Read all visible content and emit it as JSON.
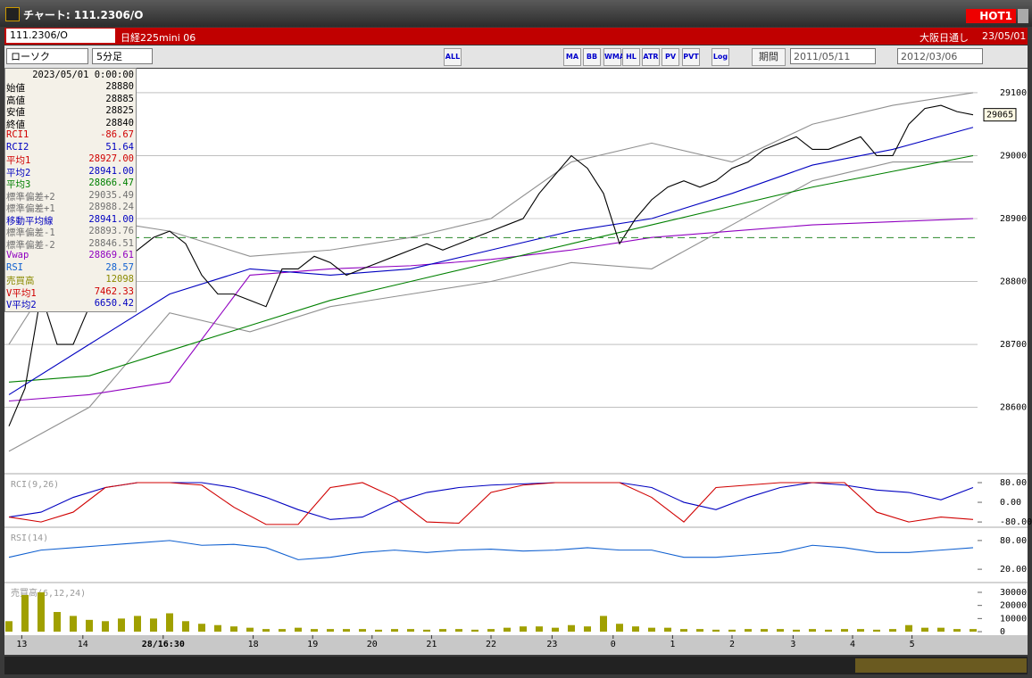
{
  "window": {
    "title": "チャート: 111.2306/O",
    "badge": "HOT1"
  },
  "symbol_bar": {
    "code": "111.2306/O",
    "name": "日経225mini 06",
    "session": "大阪日通し",
    "date": "23/05/01"
  },
  "toolbar": {
    "chart_kind": "ローソク",
    "interval": "5分足",
    "buttons": [
      "ALL",
      "MA",
      "BB",
      "WMA",
      "HL",
      "ATR",
      "PV",
      "PVT",
      "Log"
    ],
    "period_button": "期間",
    "from": "2011/05/11",
    "to": "2012/03/06"
  },
  "info": {
    "datetime": "2023/05/01 0:00:00",
    "rows": [
      {
        "label": "始値",
        "value": "28880",
        "color": "#000000"
      },
      {
        "label": "高値",
        "value": "28885",
        "color": "#000000"
      },
      {
        "label": "安値",
        "value": "28825",
        "color": "#000000"
      },
      {
        "label": "終値",
        "value": "28840",
        "color": "#000000"
      },
      {
        "label": "RCI1",
        "value": "-86.67",
        "color": "#d00000"
      },
      {
        "label": "RCI2",
        "value": "51.64",
        "color": "#0000c0"
      },
      {
        "label": "平均1",
        "value": "28927.00",
        "color": "#d00000"
      },
      {
        "label": "平均2",
        "value": "28941.00",
        "color": "#0000c0"
      },
      {
        "label": "平均3",
        "value": "28866.47",
        "color": "#008000"
      },
      {
        "label": "標準偏差+2",
        "value": "29035.49",
        "color": "#707070"
      },
      {
        "label": "標準偏差+1",
        "value": "28988.24",
        "color": "#707070"
      },
      {
        "label": "移動平均線",
        "value": "28941.00",
        "color": "#0000c0"
      },
      {
        "label": "標準偏差-1",
        "value": "28893.76",
        "color": "#707070"
      },
      {
        "label": "標準偏差-2",
        "value": "28846.51",
        "color": "#707070"
      },
      {
        "label": "Vwap",
        "value": "28869.61",
        "color": "#9000c0"
      },
      {
        "label": "RSI",
        "value": "28.57",
        "color": "#1060d0"
      },
      {
        "label": "売買高",
        "value": "12098",
        "color": "#8a8a00"
      },
      {
        "label": "V平均1",
        "value": "7462.33",
        "color": "#d00000"
      },
      {
        "label": "V平均2",
        "value": "6650.42",
        "color": "#0000c0"
      }
    ]
  },
  "chart_data": [
    {
      "type": "line",
      "last_price": 29065,
      "xlim": [
        0,
        60
      ],
      "ylim": [
        28510,
        29134
      ],
      "yticks": [
        28600,
        28700,
        28800,
        28900,
        29000,
        29100
      ],
      "grid": true,
      "xticks": [
        {
          "value": 0.8,
          "label": "13"
        },
        {
          "value": 4.6,
          "label": "14"
        },
        {
          "value": 9.6,
          "label": "28/16:30"
        },
        {
          "value": 15.2,
          "label": "18"
        },
        {
          "value": 18.9,
          "label": "19"
        },
        {
          "value": 22.6,
          "label": "20"
        },
        {
          "value": 26.3,
          "label": "21"
        },
        {
          "value": 30,
          "label": "22"
        },
        {
          "value": 33.8,
          "label": "23"
        },
        {
          "value": 37.6,
          "label": "0"
        },
        {
          "value": 41.3,
          "label": "1"
        },
        {
          "value": 45,
          "label": "2"
        },
        {
          "value": 48.8,
          "label": "3"
        },
        {
          "value": 52.5,
          "label": "4"
        },
        {
          "value": 56.2,
          "label": "5"
        }
      ],
      "x": [
        0,
        1,
        2,
        3,
        4,
        5,
        6,
        7,
        8,
        9,
        10,
        11,
        12,
        13,
        14,
        15,
        16,
        17,
        18,
        19,
        20,
        21,
        22,
        23,
        24,
        25,
        26,
        27,
        28,
        29,
        30,
        31,
        32,
        33,
        34,
        35,
        36,
        37,
        38,
        39,
        40,
        41,
        42,
        43,
        44,
        45,
        46,
        47,
        48,
        49,
        50,
        51,
        52,
        53,
        54,
        55,
        56,
        57,
        58,
        59,
        60
      ],
      "series": [
        {
          "color": "#909090",
          "x": [
            0,
            5,
            10,
            15,
            20,
            25,
            30,
            35,
            40,
            45,
            50,
            55,
            60
          ],
          "values": [
            28700,
            28900,
            28880,
            28840,
            28850,
            28870,
            28900,
            28990,
            29020,
            28990,
            29050,
            29080,
            29100
          ]
        },
        {
          "color": "#909090",
          "x": [
            0,
            5,
            10,
            15,
            20,
            25,
            30,
            35,
            40,
            45,
            50,
            55,
            60
          ],
          "values": [
            28530,
            28600,
            28750,
            28720,
            28760,
            28780,
            28800,
            28830,
            28820,
            28890,
            28960,
            28990,
            28990
          ]
        },
        {
          "color": "#9000c0",
          "x": [
            0,
            5,
            10,
            15,
            20,
            25,
            30,
            35,
            40,
            45,
            50,
            55,
            60
          ],
          "values": [
            28610,
            28620,
            28640,
            28810,
            28820,
            28825,
            28835,
            28850,
            28870,
            28880,
            28890,
            28895,
            28900
          ]
        },
        {
          "color": "#008000",
          "x": [
            0,
            5,
            10,
            15,
            20,
            25,
            30,
            35,
            40,
            45,
            50,
            55,
            60
          ],
          "values": [
            28640,
            28650,
            28690,
            28730,
            28770,
            28800,
            28830,
            28860,
            28890,
            28920,
            28950,
            28975,
            29000
          ]
        },
        {
          "color": "#0000c0",
          "x": [
            0,
            5,
            10,
            15,
            20,
            25,
            30,
            35,
            40,
            45,
            50,
            55,
            60
          ],
          "values": [
            28620,
            28700,
            28780,
            28820,
            28810,
            28820,
            28850,
            28880,
            28900,
            28940,
            28985,
            29010,
            29045
          ]
        },
        {
          "color": "#000000",
          "values": [
            28570,
            28630,
            28780,
            28700,
            28700,
            28760,
            28800,
            28830,
            28850,
            28870,
            28880,
            28860,
            28810,
            28780,
            28780,
            28770,
            28760,
            28820,
            28820,
            28840,
            28830,
            28810,
            28820,
            28830,
            28840,
            28850,
            28860,
            28850,
            28860,
            28870,
            28880,
            28890,
            28900,
            28940,
            28970,
            29000,
            28980,
            28940,
            28860,
            28900,
            28930,
            28950,
            28960,
            28950,
            28960,
            28980,
            28990,
            29010,
            29020,
            29030,
            29010,
            29010,
            29020,
            29030,
            29000,
            29000,
            29050,
            29075,
            29080,
            29070,
            29065
          ]
        }
      ]
    },
    {
      "type": "line",
      "label": "RCI(9,26)",
      "xlim": [
        0,
        60
      ],
      "ylim": [
        -105,
        109
      ],
      "yticks": [
        {
          "value": 80,
          "label": "80.00"
        },
        {
          "value": 0,
          "label": "0.00"
        },
        {
          "value": -80,
          "label": "-80.00"
        }
      ],
      "x": [
        0,
        2,
        4,
        6,
        8,
        10,
        12,
        14,
        16,
        18,
        20,
        22,
        24,
        26,
        28,
        30,
        32,
        34,
        36,
        38,
        40,
        42,
        44,
        46,
        48,
        50,
        52,
        54,
        56,
        58,
        60
      ],
      "series": [
        {
          "color": "#0000c0",
          "values": [
            -60,
            -40,
            20,
            60,
            80,
            80,
            80,
            60,
            20,
            -30,
            -70,
            -60,
            0,
            40,
            60,
            70,
            75,
            80,
            80,
            80,
            60,
            0,
            -30,
            20,
            60,
            80,
            70,
            50,
            40,
            10,
            60
          ]
        },
        {
          "color": "#d00000",
          "values": [
            -60,
            -80,
            -40,
            60,
            80,
            80,
            70,
            -20,
            -90,
            -90,
            60,
            80,
            20,
            -80,
            -85,
            40,
            70,
            80,
            80,
            80,
            20,
            -80,
            60,
            70,
            80,
            80,
            80,
            -40,
            -80,
            -60,
            -70
          ]
        }
      ]
    },
    {
      "type": "line",
      "label": "RSI(14)",
      "xlim": [
        0,
        60
      ],
      "ylim": [
        -4,
        104
      ],
      "yticks": [
        {
          "value": 80,
          "label": "80.00"
        },
        {
          "value": 20,
          "label": "20.00"
        }
      ],
      "x": [
        0,
        2,
        4,
        6,
        8,
        10,
        12,
        14,
        16,
        18,
        20,
        22,
        24,
        26,
        28,
        30,
        32,
        34,
        36,
        38,
        40,
        42,
        44,
        46,
        48,
        50,
        52,
        54,
        56,
        58,
        60
      ],
      "series": [
        {
          "color": "#1060d0",
          "values": [
            45,
            60,
            65,
            70,
            75,
            80,
            70,
            72,
            65,
            40,
            45,
            55,
            60,
            55,
            60,
            62,
            58,
            60,
            65,
            60,
            60,
            45,
            45,
            50,
            55,
            70,
            65,
            55,
            55,
            60,
            65
          ]
        }
      ]
    },
    {
      "type": "bar",
      "label": "売買高(6,12,24)",
      "xlim": [
        0,
        60
      ],
      "ylim": [
        -2000,
        36100
      ],
      "yticks": [
        30000,
        20000,
        10000,
        0
      ],
      "x": [
        0,
        1,
        2,
        3,
        4,
        5,
        6,
        7,
        8,
        9,
        10,
        11,
        12,
        13,
        14,
        15,
        16,
        17,
        18,
        19,
        20,
        21,
        22,
        23,
        24,
        25,
        26,
        27,
        28,
        29,
        30,
        31,
        32,
        33,
        34,
        35,
        36,
        37,
        38,
        39,
        40,
        41,
        42,
        43,
        44,
        45,
        46,
        47,
        48,
        49,
        50,
        51,
        52,
        53,
        54,
        55,
        56,
        57,
        58,
        59,
        60
      ],
      "series": [
        {
          "color": "#a0a000",
          "values": [
            8000,
            28000,
            30000,
            15000,
            12000,
            9000,
            8000,
            10000,
            12000,
            10000,
            14000,
            8000,
            6000,
            5000,
            4000,
            3000,
            2000,
            2000,
            3000,
            2000,
            2000,
            2000,
            2000,
            1500,
            2000,
            2000,
            1500,
            2000,
            2000,
            1500,
            2000,
            3000,
            4000,
            4000,
            3000,
            5000,
            4000,
            12000,
            6000,
            4000,
            3000,
            3000,
            2000,
            2000,
            1500,
            1500,
            2000,
            2000,
            2000,
            1500,
            2000,
            1500,
            2000,
            2000,
            1500,
            2000,
            5000,
            3000,
            3000,
            2000,
            2000
          ]
        }
      ]
    }
  ]
}
